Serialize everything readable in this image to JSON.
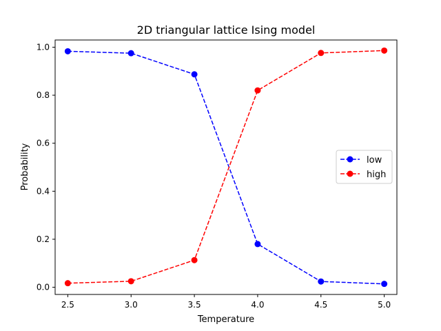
{
  "chart_data": {
    "type": "line",
    "title": "2D triangular lattice Ising model",
    "xlabel": "Temperature",
    "ylabel": "Probability",
    "x": [
      2.5,
      3.0,
      3.5,
      4.0,
      4.5,
      5.0
    ],
    "xlim": [
      2.4,
      5.1
    ],
    "ylim": [
      -0.03,
      1.03
    ],
    "xticks": [
      2.5,
      3.0,
      3.5,
      4.0,
      4.5,
      5.0
    ],
    "xtick_labels": [
      "2.5",
      "3.0",
      "3.5",
      "4.0",
      "4.5",
      "5.0"
    ],
    "yticks": [
      0.0,
      0.2,
      0.4,
      0.6,
      0.8,
      1.0
    ],
    "ytick_labels": [
      "0.0",
      "0.2",
      "0.4",
      "0.6",
      "0.8",
      "1.0"
    ],
    "grid": false,
    "legend_position": "center-right",
    "series": [
      {
        "name": "low",
        "color": "#0000ff",
        "linestyle": "dashed",
        "marker": "circle",
        "values": [
          0.983,
          0.975,
          0.887,
          0.18,
          0.024,
          0.014
        ]
      },
      {
        "name": "high",
        "color": "#ff0000",
        "linestyle": "dashed",
        "marker": "circle",
        "values": [
          0.017,
          0.025,
          0.113,
          0.82,
          0.976,
          0.986
        ]
      }
    ]
  }
}
